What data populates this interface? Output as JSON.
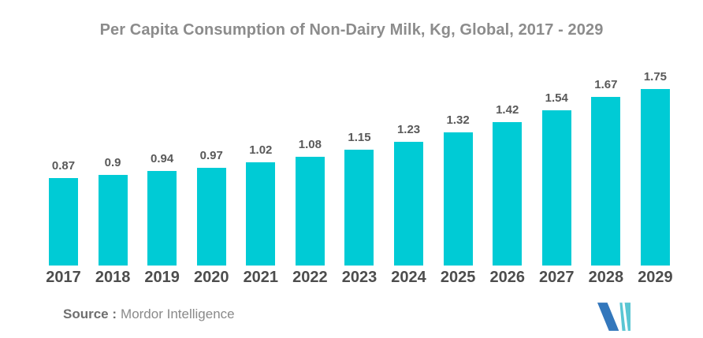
{
  "chart_data": {
    "type": "bar",
    "title": "Per Capita Consumption of Non-Dairy Milk, Kg, Global, 2017 - 2029",
    "categories": [
      "2017",
      "2018",
      "2019",
      "2020",
      "2021",
      "2022",
      "2023",
      "2024",
      "2025",
      "2026",
      "2027",
      "2028",
      "2029"
    ],
    "values": [
      0.87,
      0.9,
      0.94,
      0.97,
      1.02,
      1.08,
      1.15,
      1.23,
      1.32,
      1.42,
      1.54,
      1.67,
      1.75
    ],
    "data_labels": [
      "0.87",
      "0.9",
      "0.94",
      "0.97",
      "1.02",
      "1.08",
      "1.15",
      "1.23",
      "1.32",
      "1.42",
      "1.54",
      "1.67",
      "1.75"
    ],
    "xlabel": "",
    "ylabel": "",
    "unit": "Kg",
    "ylim": [
      0,
      1.9
    ],
    "grid": false,
    "legend": false,
    "bar_color": "#00cbd5"
  },
  "source": {
    "label": "Source :",
    "name": "Mordor Intelligence"
  },
  "colors": {
    "bar": "#00cbd5",
    "title_text": "#8c8c8c",
    "value_label_text": "#595959",
    "year_label_text": "#4d4d4d",
    "source_text": "#8a8a8a",
    "logo_dark_blue": "#3377bc",
    "logo_light_teal": "#5ac6d3"
  },
  "logo": {
    "name": "Mordor Intelligence monogram"
  }
}
